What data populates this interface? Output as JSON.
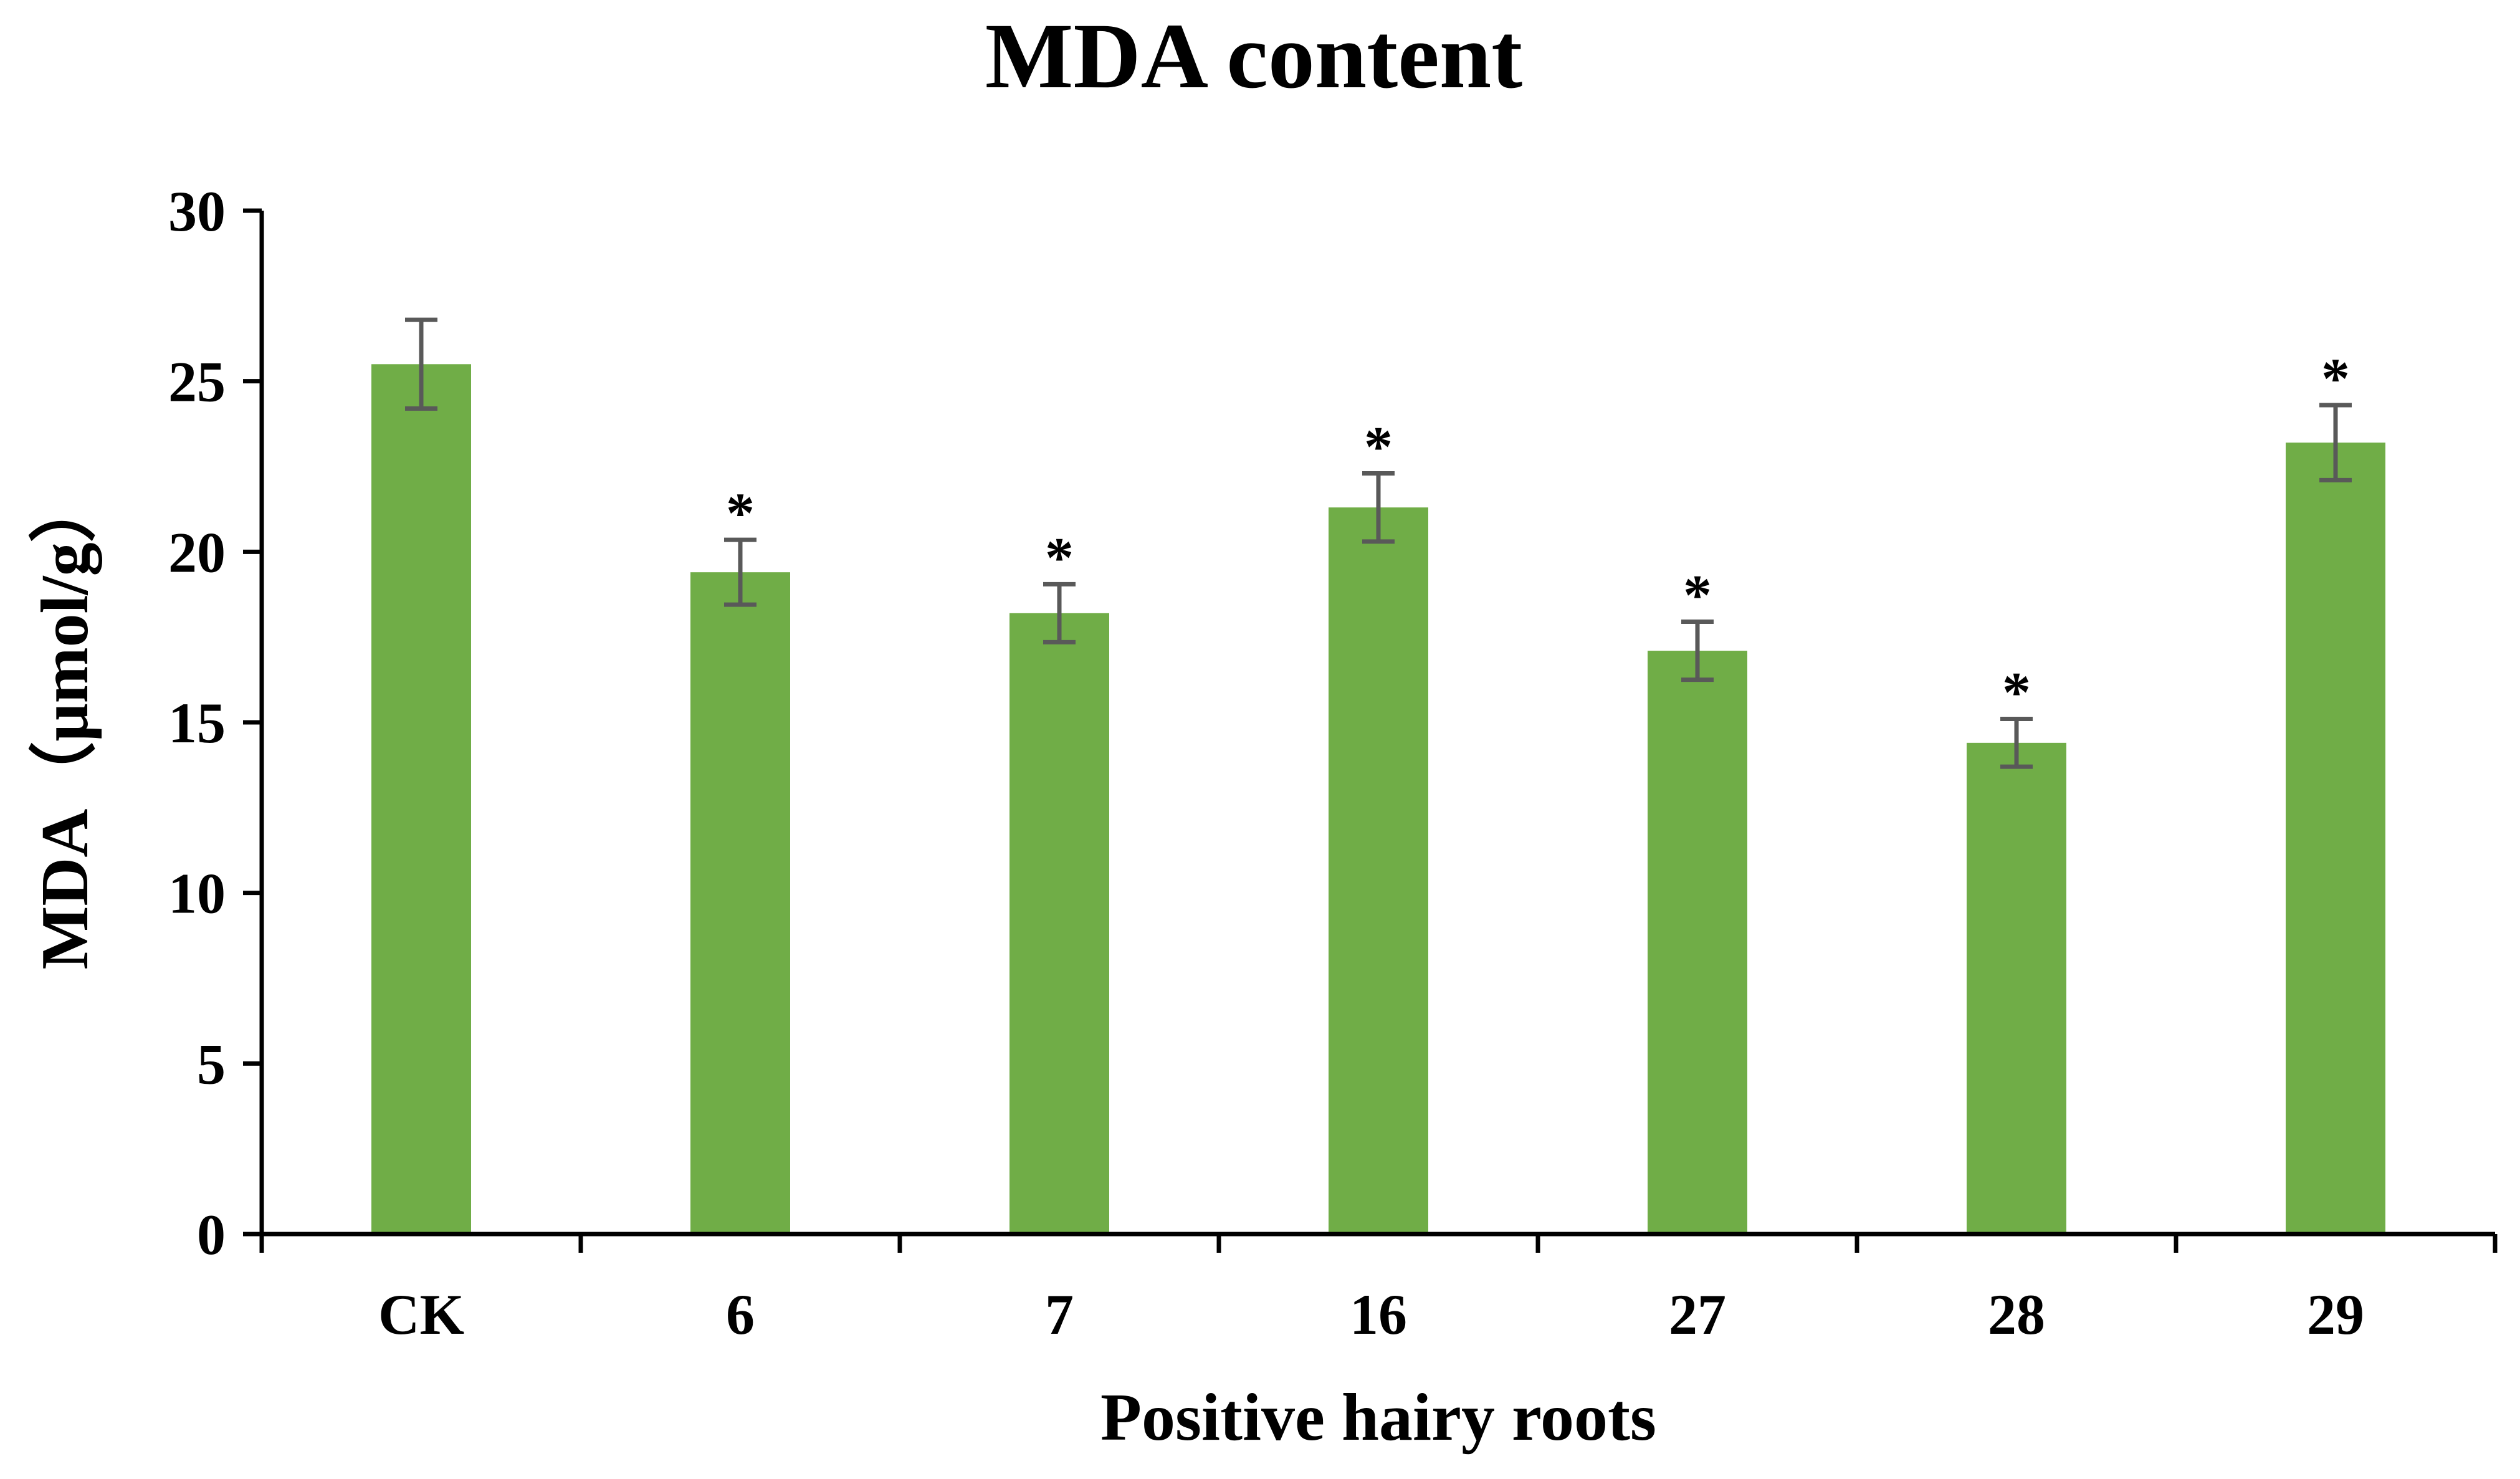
{
  "chart_data": {
    "type": "bar",
    "title": "MDA content",
    "xlabel": "Positive hairy roots",
    "ylabel": "MDA（μmol/g）",
    "categories": [
      "CK",
      "6",
      "7",
      "16",
      "27",
      "28",
      "29"
    ],
    "values": [
      25.5,
      19.4,
      18.2,
      21.3,
      17.1,
      14.4,
      23.2
    ],
    "error": [
      1.3,
      0.95,
      0.85,
      1.0,
      0.85,
      0.7,
      1.1
    ],
    "significance": [
      "",
      "*",
      "*",
      "*",
      "*",
      "*",
      "*"
    ],
    "ylim": [
      0,
      30
    ],
    "yticks": [
      0,
      5,
      10,
      15,
      20,
      25,
      30
    ],
    "bar_color": "#70AD47",
    "error_bar_color": "#595959",
    "grid": false,
    "legend": "none"
  }
}
